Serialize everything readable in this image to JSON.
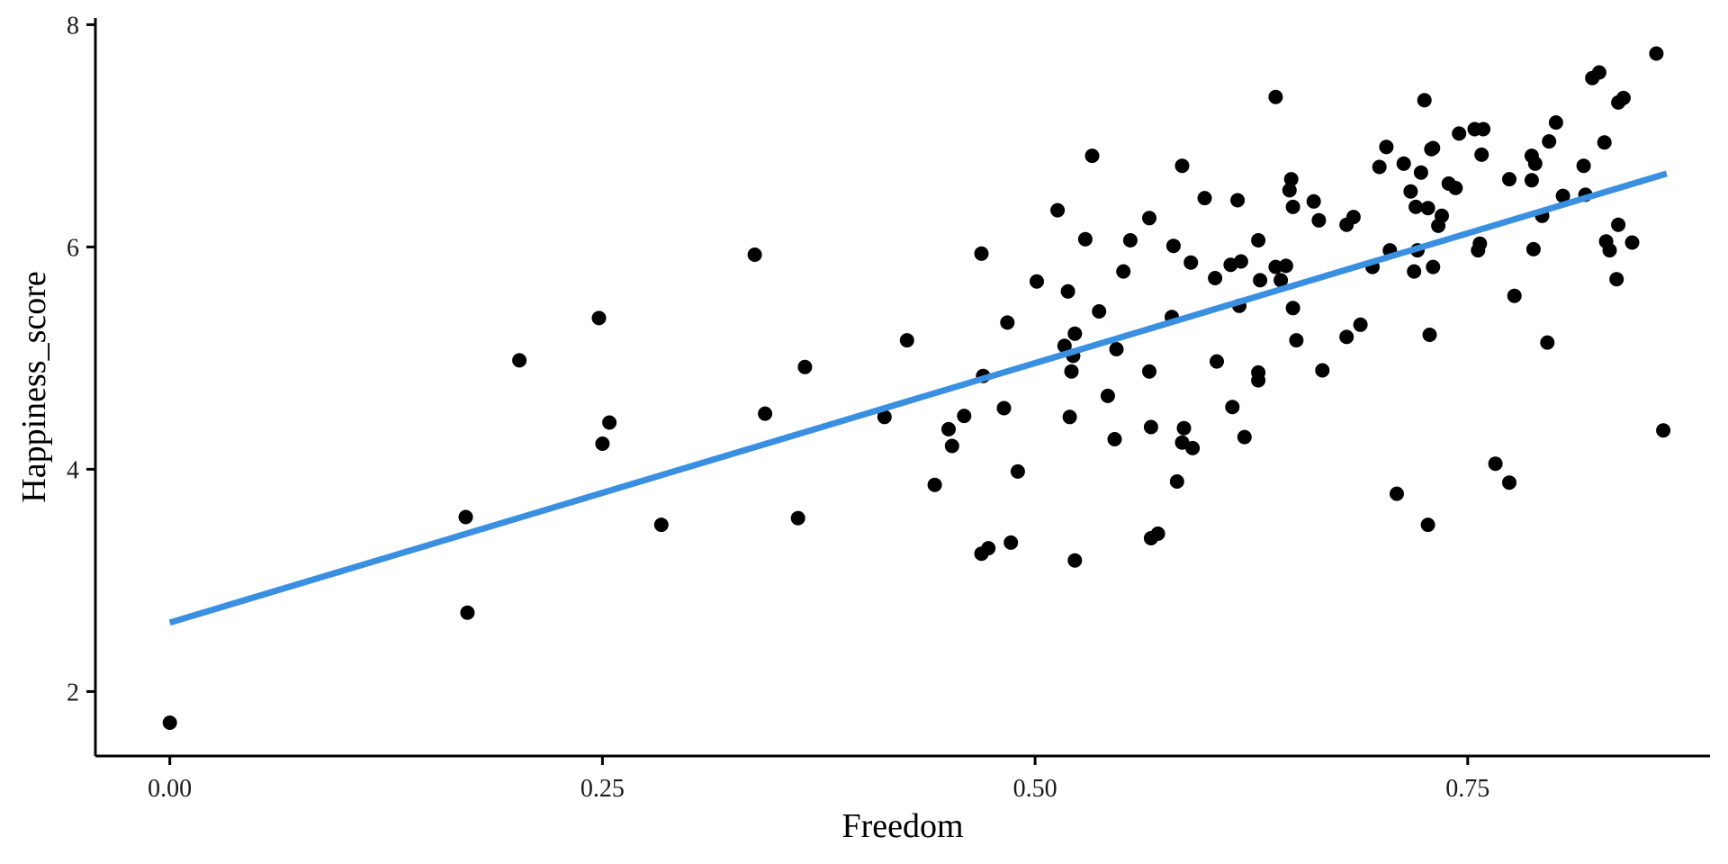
{
  "chart_data": {
    "type": "scatter",
    "title": "",
    "xlabel": "Freedom",
    "ylabel": "Happiness_score",
    "xlim": [
      -0.043,
      0.89
    ],
    "ylim": [
      1.42,
      8.06
    ],
    "x_ticks": [
      0.0,
      0.25,
      0.5,
      0.75
    ],
    "x_tick_labels": [
      "0.00",
      "0.25",
      "0.50",
      "0.75"
    ],
    "y_ticks": [
      2,
      4,
      6,
      8
    ],
    "y_tick_labels": [
      "2",
      "4",
      "6",
      "8"
    ],
    "grid": false,
    "legend": "none",
    "point_color": "#000000",
    "line_color": "#3a8fe0",
    "trend_line": {
      "x": [
        0.0,
        0.865
      ],
      "y": [
        2.62,
        6.66
      ]
    },
    "points": [
      [
        0.0,
        1.72
      ],
      [
        0.172,
        2.71
      ],
      [
        0.171,
        3.57
      ],
      [
        0.202,
        4.98
      ],
      [
        0.248,
        5.36
      ],
      [
        0.25,
        4.23
      ],
      [
        0.254,
        4.42
      ],
      [
        0.284,
        3.5
      ],
      [
        0.338,
        5.93
      ],
      [
        0.344,
        4.5
      ],
      [
        0.363,
        3.56
      ],
      [
        0.367,
        4.92
      ],
      [
        0.413,
        4.47
      ],
      [
        0.426,
        5.16
      ],
      [
        0.442,
        3.86
      ],
      [
        0.45,
        4.36
      ],
      [
        0.452,
        4.21
      ],
      [
        0.459,
        4.48
      ],
      [
        0.469,
        5.94
      ],
      [
        0.47,
        4.84
      ],
      [
        0.469,
        3.24
      ],
      [
        0.473,
        3.29
      ],
      [
        0.482,
        4.55
      ],
      [
        0.484,
        5.32
      ],
      [
        0.486,
        3.34
      ],
      [
        0.49,
        3.98
      ],
      [
        0.501,
        5.69
      ],
      [
        0.513,
        6.33
      ],
      [
        0.517,
        5.11
      ],
      [
        0.519,
        5.6
      ],
      [
        0.52,
        4.47
      ],
      [
        0.521,
        4.88
      ],
      [
        0.522,
        5.02
      ],
      [
        0.523,
        5.22
      ],
      [
        0.523,
        3.18
      ],
      [
        0.529,
        6.07
      ],
      [
        0.533,
        6.82
      ],
      [
        0.537,
        5.42
      ],
      [
        0.542,
        4.66
      ],
      [
        0.546,
        4.27
      ],
      [
        0.547,
        5.08
      ],
      [
        0.551,
        5.78
      ],
      [
        0.555,
        6.06
      ],
      [
        0.566,
        6.26
      ],
      [
        0.566,
        4.88
      ],
      [
        0.567,
        4.38
      ],
      [
        0.567,
        3.38
      ],
      [
        0.571,
        3.42
      ],
      [
        0.579,
        5.37
      ],
      [
        0.58,
        6.01
      ],
      [
        0.582,
        3.89
      ],
      [
        0.585,
        6.73
      ],
      [
        0.585,
        4.24
      ],
      [
        0.586,
        4.37
      ],
      [
        0.59,
        5.86
      ],
      [
        0.591,
        4.19
      ],
      [
        0.598,
        6.44
      ],
      [
        0.604,
        5.72
      ],
      [
        0.605,
        4.97
      ],
      [
        0.613,
        5.84
      ],
      [
        0.614,
        4.56
      ],
      [
        0.617,
        6.42
      ],
      [
        0.618,
        5.47
      ],
      [
        0.619,
        5.87
      ],
      [
        0.621,
        4.29
      ],
      [
        0.629,
        6.06
      ],
      [
        0.629,
        4.87
      ],
      [
        0.629,
        4.8
      ],
      [
        0.63,
        5.7
      ],
      [
        0.639,
        7.35
      ],
      [
        0.639,
        5.82
      ],
      [
        0.642,
        5.7
      ],
      [
        0.645,
        5.83
      ],
      [
        0.647,
        6.51
      ],
      [
        0.648,
        6.61
      ],
      [
        0.649,
        6.36
      ],
      [
        0.649,
        5.45
      ],
      [
        0.651,
        5.16
      ],
      [
        0.661,
        6.41
      ],
      [
        0.664,
        6.24
      ],
      [
        0.666,
        4.89
      ],
      [
        0.68,
        5.19
      ],
      [
        0.68,
        6.2
      ],
      [
        0.684,
        6.27
      ],
      [
        0.688,
        5.3
      ],
      [
        0.695,
        5.82
      ],
      [
        0.699,
        6.72
      ],
      [
        0.703,
        6.9
      ],
      [
        0.705,
        5.97
      ],
      [
        0.709,
        3.78
      ],
      [
        0.713,
        6.75
      ],
      [
        0.717,
        6.5
      ],
      [
        0.719,
        5.78
      ],
      [
        0.72,
        6.36
      ],
      [
        0.721,
        5.97
      ],
      [
        0.723,
        6.67
      ],
      [
        0.725,
        7.32
      ],
      [
        0.727,
        6.35
      ],
      [
        0.727,
        3.5
      ],
      [
        0.728,
        5.21
      ],
      [
        0.729,
        6.88
      ],
      [
        0.73,
        6.89
      ],
      [
        0.73,
        5.82
      ],
      [
        0.733,
        6.19
      ],
      [
        0.735,
        6.28
      ],
      [
        0.739,
        6.57
      ],
      [
        0.743,
        6.53
      ],
      [
        0.745,
        7.02
      ],
      [
        0.754,
        7.06
      ],
      [
        0.756,
        5.97
      ],
      [
        0.757,
        6.03
      ],
      [
        0.758,
        6.83
      ],
      [
        0.759,
        7.06
      ],
      [
        0.766,
        4.05
      ],
      [
        0.774,
        6.61
      ],
      [
        0.774,
        3.88
      ],
      [
        0.777,
        5.56
      ],
      [
        0.787,
        6.82
      ],
      [
        0.787,
        6.6
      ],
      [
        0.788,
        5.98
      ],
      [
        0.789,
        6.75
      ],
      [
        0.793,
        6.28
      ],
      [
        0.796,
        5.14
      ],
      [
        0.797,
        6.95
      ],
      [
        0.801,
        7.12
      ],
      [
        0.805,
        6.46
      ],
      [
        0.817,
        6.73
      ],
      [
        0.818,
        6.47
      ],
      [
        0.822,
        7.52
      ],
      [
        0.826,
        7.57
      ],
      [
        0.829,
        6.94
      ],
      [
        0.83,
        6.05
      ],
      [
        0.832,
        5.97
      ],
      [
        0.836,
        5.71
      ],
      [
        0.837,
        6.2
      ],
      [
        0.837,
        7.3
      ],
      [
        0.84,
        7.34
      ],
      [
        0.845,
        6.04
      ],
      [
        0.859,
        7.74
      ],
      [
        0.863,
        4.35
      ]
    ]
  }
}
